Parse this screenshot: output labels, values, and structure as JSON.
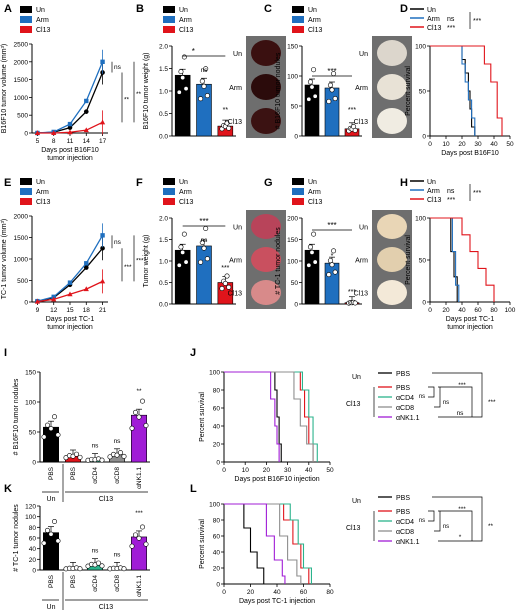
{
  "colors": {
    "un": "#000000",
    "arm": "#1f6fbf",
    "cl13": "#e0141b",
    "pbs": "#000000",
    "acd4": "#2bb38c",
    "acd8": "#8e8e8e",
    "ank11": "#a01cd6"
  },
  "legends": {
    "three": [
      "Un",
      "Arm",
      "Cl13"
    ],
    "surv": [
      "PBS",
      "PBS",
      "αCD4",
      "αCD8",
      "αNK1.1"
    ],
    "groupUn": "Un",
    "groupCl13": "Cl13"
  },
  "photoLabels": [
    "Un",
    "Arm",
    "Cl13"
  ],
  "sig": {
    "ns": "ns",
    "s1": "*",
    "s2": "**",
    "s3": "***"
  },
  "panels": [
    {
      "letter": "A",
      "ylabel": "B16F10 tumor volume (mm³)",
      "xlabel": "Days post B16F10",
      "xlabel2": "tumor injection"
    },
    {
      "letter": "B",
      "ylabel": "B16F10 tumor weight (g)"
    },
    {
      "letter": "C",
      "ylabel": "# B16F10 tumor nodules"
    },
    {
      "letter": "D",
      "ylabel": "Percent survival",
      "xlabel": "Days post B16F10"
    },
    {
      "letter": "E",
      "ylabel": "TC-1 tumor volume (mm³)",
      "xlabel": "Days post TC-1",
      "xlabel2": "tumor injection"
    },
    {
      "letter": "F",
      "ylabel": "Tumor weight (g)"
    },
    {
      "letter": "G",
      "ylabel": "# TC-1 tumor nodules"
    },
    {
      "letter": "H",
      "ylabel": "Percent survival",
      "xlabel": "Days post TC-1",
      "xlabel2": "tumor injection"
    },
    {
      "letter": "I",
      "ylabel": "# B16F10 tumor nodules"
    },
    {
      "letter": "J",
      "ylabel": "Percent survival",
      "xlabel": "Days post B16F10 injection"
    },
    {
      "letter": "K",
      "ylabel": "# TC-1 tumor nodules"
    },
    {
      "letter": "L",
      "ylabel": "Percent survival",
      "xlabel": "Days post TC-1 injection"
    }
  ],
  "chart_data": [
    {
      "panel": "A",
      "type": "line",
      "x": [
        5,
        8,
        11,
        14,
        17
      ],
      "ylim": [
        0,
        2500
      ],
      "yticks": [
        0,
        500,
        1000,
        1500,
        2000,
        2500
      ],
      "series": [
        {
          "name": "Un",
          "values": [
            0,
            20,
            150,
            600,
            1700
          ]
        },
        {
          "name": "Arm",
          "values": [
            0,
            30,
            250,
            900,
            2000
          ]
        },
        {
          "name": "Cl13",
          "values": [
            0,
            0,
            20,
            80,
            300
          ]
        }
      ],
      "annotations": [
        "ns",
        "**",
        "**"
      ]
    },
    {
      "panel": "B",
      "type": "bar",
      "categories": [
        "Un",
        "Arm",
        "Cl13"
      ],
      "values": [
        1.35,
        1.15,
        0.22
      ],
      "ylim": [
        0,
        2.0
      ],
      "yticks": [
        0,
        0.5,
        1.0,
        1.5,
        2.0
      ],
      "annotations": [
        "*",
        "ns",
        "**"
      ]
    },
    {
      "panel": "C",
      "type": "bar",
      "categories": [
        "Un",
        "Arm",
        "Cl13"
      ],
      "values": [
        85,
        80,
        12
      ],
      "ylim": [
        0,
        150
      ],
      "yticks": [
        0,
        50,
        100,
        150
      ],
      "annotations": [
        "***",
        "***"
      ]
    },
    {
      "panel": "D",
      "type": "line",
      "xlim": [
        0,
        50
      ],
      "xticks": [
        0,
        10,
        20,
        30,
        40,
        50
      ],
      "ylim": [
        0,
        100
      ],
      "yticks": [
        0,
        50,
        100
      ],
      "series": [
        {
          "name": "Un",
          "x": [
            0,
            18,
            20,
            22,
            24,
            25,
            26,
            28
          ],
          "values": [
            100,
            100,
            85,
            70,
            50,
            30,
            10,
            0
          ]
        },
        {
          "name": "Arm",
          "x": [
            0,
            18,
            20,
            22,
            24,
            26,
            28
          ],
          "values": [
            100,
            100,
            80,
            60,
            40,
            20,
            0
          ]
        },
        {
          "name": "Cl13",
          "x": [
            0,
            30,
            34,
            38,
            42,
            45
          ],
          "values": [
            100,
            100,
            80,
            60,
            20,
            0
          ]
        }
      ],
      "annotations": [
        "ns",
        "***",
        "***"
      ]
    },
    {
      "panel": "E",
      "type": "line",
      "x": [
        9,
        12,
        15,
        18,
        21
      ],
      "ylim": [
        0,
        2000
      ],
      "yticks": [
        0,
        500,
        1000,
        1500,
        2000
      ],
      "series": [
        {
          "name": "Un",
          "values": [
            20,
            100,
            400,
            800,
            1250
          ]
        },
        {
          "name": "Arm",
          "values": [
            20,
            120,
            450,
            900,
            1550
          ]
        },
        {
          "name": "Cl13",
          "values": [
            10,
            60,
            180,
            300,
            480
          ]
        }
      ],
      "annotations": [
        "ns",
        "***",
        "***"
      ]
    },
    {
      "panel": "F",
      "type": "bar",
      "categories": [
        "Un",
        "Arm",
        "Cl13"
      ],
      "values": [
        1.25,
        1.35,
        0.5
      ],
      "ylim": [
        0,
        2.0
      ],
      "yticks": [
        0,
        0.5,
        1.0,
        1.5,
        2.0
      ],
      "annotations": [
        "***",
        "ns",
        "***"
      ]
    },
    {
      "panel": "G",
      "type": "bar",
      "categories": [
        "Un",
        "Arm",
        "Cl13"
      ],
      "values": [
        125,
        95,
        3
      ],
      "ylim": [
        0,
        200
      ],
      "yticks": [
        0,
        50,
        100,
        150,
        200
      ],
      "annotations": [
        "***",
        "*",
        "***"
      ]
    },
    {
      "panel": "H",
      "type": "line",
      "xlim": [
        0,
        100
      ],
      "xticks": [
        0,
        20,
        40,
        60,
        80,
        100
      ],
      "ylim": [
        0,
        100
      ],
      "yticks": [
        0,
        50,
        100
      ],
      "series": [
        {
          "name": "Un",
          "x": [
            0,
            22,
            26,
            30,
            34
          ],
          "values": [
            100,
            100,
            60,
            30,
            0
          ]
        },
        {
          "name": "Arm",
          "x": [
            0,
            24,
            28,
            32,
            36
          ],
          "values": [
            100,
            100,
            60,
            20,
            0
          ]
        },
        {
          "name": "Cl13",
          "x": [
            0,
            30,
            40,
            50,
            60,
            70,
            80
          ],
          "values": [
            100,
            100,
            80,
            60,
            40,
            20,
            0
          ]
        }
      ],
      "annotations": [
        "ns",
        "***",
        "***"
      ]
    },
    {
      "panel": "I",
      "type": "bar",
      "categories": [
        "PBS",
        "PBS",
        "αCD4",
        "αCD8",
        "αNK1.1"
      ],
      "values": [
        58,
        10,
        4,
        12,
        78
      ],
      "ylim": [
        0,
        150
      ],
      "yticks": [
        0,
        50,
        100,
        150
      ],
      "annotations": [
        "ns",
        "ns",
        "**"
      ]
    },
    {
      "panel": "J",
      "type": "line",
      "xlim": [
        0,
        50
      ],
      "xticks": [
        0,
        10,
        20,
        30,
        40,
        50
      ],
      "ylim": [
        0,
        100
      ],
      "yticks": [
        0,
        20,
        40,
        60,
        80,
        100
      ],
      "series": [
        {
          "name": "PBS",
          "x": [
            0,
            22,
            24,
            25,
            26,
            27
          ],
          "values": [
            100,
            100,
            80,
            50,
            20,
            0
          ]
        },
        {
          "name": "PBS",
          "x": [
            0,
            33,
            36,
            38,
            40,
            42
          ],
          "values": [
            100,
            100,
            80,
            50,
            20,
            0
          ]
        },
        {
          "name": "αCD4",
          "x": [
            0,
            34,
            37,
            40,
            42,
            44
          ],
          "values": [
            100,
            100,
            80,
            50,
            20,
            0
          ]
        },
        {
          "name": "αCD8",
          "x": [
            0,
            30,
            33,
            36,
            39,
            42
          ],
          "values": [
            100,
            100,
            70,
            40,
            20,
            0
          ]
        },
        {
          "name": "αNK1.1",
          "x": [
            0,
            20,
            22,
            24,
            25,
            26
          ],
          "values": [
            100,
            100,
            70,
            40,
            20,
            0
          ]
        }
      ],
      "annotations": [
        "***",
        "ns",
        "ns",
        "ns",
        "***"
      ]
    },
    {
      "panel": "K",
      "type": "bar",
      "categories": [
        "PBS",
        "PBS",
        "αCD4",
        "αCD8",
        "αNK1.1"
      ],
      "values": [
        70,
        3,
        10,
        3,
        62
      ],
      "ylim": [
        0,
        120
      ],
      "yticks": [
        0,
        20,
        40,
        60,
        80,
        100,
        120
      ],
      "annotations": [
        "ns",
        "ns",
        "***"
      ]
    },
    {
      "panel": "L",
      "type": "line",
      "xlim": [
        0,
        80
      ],
      "xticks": [
        0,
        20,
        40,
        60,
        80
      ],
      "ylim": [
        0,
        100
      ],
      "yticks": [
        0,
        20,
        40,
        60,
        80,
        100
      ],
      "series": [
        {
          "name": "PBS",
          "x": [
            0,
            10,
            15,
            20,
            25,
            30
          ],
          "values": [
            100,
            100,
            70,
            40,
            20,
            0
          ]
        },
        {
          "name": "PBS",
          "x": [
            0,
            40,
            45,
            52,
            58,
            64
          ],
          "values": [
            100,
            100,
            80,
            50,
            20,
            0
          ]
        },
        {
          "name": "αCD4",
          "x": [
            0,
            44,
            50,
            56,
            60,
            66
          ],
          "values": [
            100,
            100,
            80,
            50,
            20,
            0
          ]
        },
        {
          "name": "αCD8",
          "x": [
            0,
            35,
            42,
            48,
            55,
            58
          ],
          "values": [
            100,
            100,
            60,
            30,
            10,
            0
          ]
        },
        {
          "name": "αNK1.1",
          "x": [
            0,
            25,
            32,
            38,
            44,
            46
          ],
          "values": [
            100,
            100,
            60,
            30,
            10,
            0
          ]
        }
      ],
      "annotations": [
        "***",
        "ns",
        "ns",
        "*",
        "**"
      ]
    }
  ]
}
